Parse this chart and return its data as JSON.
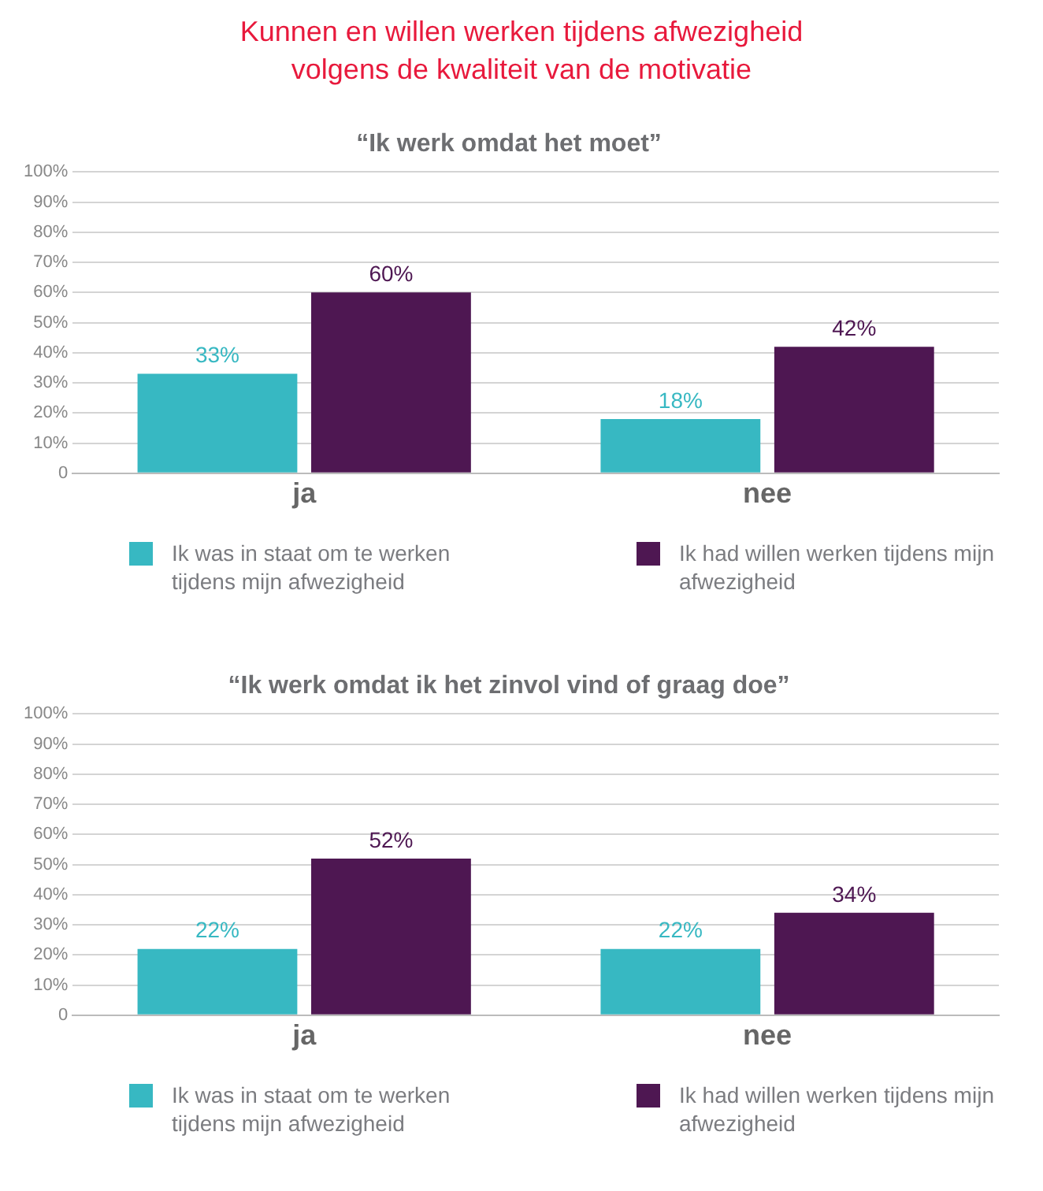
{
  "chart_data": [
    {
      "type": "bar",
      "title": "“Ik werk omdat het moet”",
      "annotations": [
        "Kunnen en willen werken tijdens afwezigheid\nvolgens de kwaliteit van de motivatie"
      ],
      "categories": [
        "ja",
        "nee"
      ],
      "series": [
        {
          "name": "Ik was in staat om te werken tijdens mijn afwezigheid",
          "color": "#37b8c2",
          "values": [
            33,
            18
          ],
          "value_labels": [
            "33%",
            "18%"
          ]
        },
        {
          "name": "Ik had willen werken tijdens mijn afwezigheid",
          "color": "#4e1752",
          "values": [
            60,
            42
          ],
          "value_labels": [
            "60%",
            "42%"
          ]
        }
      ],
      "ylim": [
        0,
        100
      ],
      "yticks": [
        {
          "value": 0,
          "label": "0"
        },
        {
          "value": 10,
          "label": "10%"
        },
        {
          "value": 20,
          "label": "20%"
        },
        {
          "value": 30,
          "label": "30%"
        },
        {
          "value": 40,
          "label": "40%"
        },
        {
          "value": 50,
          "label": "50%"
        },
        {
          "value": 60,
          "label": "60%"
        },
        {
          "value": 70,
          "label": "70%"
        },
        {
          "value": 80,
          "label": "80%"
        },
        {
          "value": 90,
          "label": "90%"
        },
        {
          "value": 100,
          "label": "100%"
        }
      ],
      "grid": "y",
      "legend": "bottom"
    },
    {
      "type": "bar",
      "title": "“Ik werk omdat ik het zinvol vind of graag doe”",
      "categories": [
        "ja",
        "nee"
      ],
      "series": [
        {
          "name": "Ik was in staat om te werken tijdens mijn afwezigheid",
          "color": "#37b8c2",
          "values": [
            22,
            22
          ],
          "value_labels": [
            "22%",
            "22%"
          ]
        },
        {
          "name": "Ik had willen werken tijdens mijn afwezigheid",
          "color": "#4e1752",
          "values": [
            52,
            34
          ],
          "value_labels": [
            "52%",
            "34%"
          ]
        }
      ],
      "ylim": [
        0,
        100
      ],
      "yticks": [
        {
          "value": 0,
          "label": "0"
        },
        {
          "value": 10,
          "label": "10%"
        },
        {
          "value": 20,
          "label": "20%"
        },
        {
          "value": 30,
          "label": "30%"
        },
        {
          "value": 40,
          "label": "40%"
        },
        {
          "value": 50,
          "label": "50%"
        },
        {
          "value": 60,
          "label": "60%"
        },
        {
          "value": 70,
          "label": "70%"
        },
        {
          "value": 80,
          "label": "80%"
        },
        {
          "value": 90,
          "label": "90%"
        },
        {
          "value": 100,
          "label": "100%"
        }
      ],
      "grid": "y",
      "legend": "bottom"
    }
  ]
}
